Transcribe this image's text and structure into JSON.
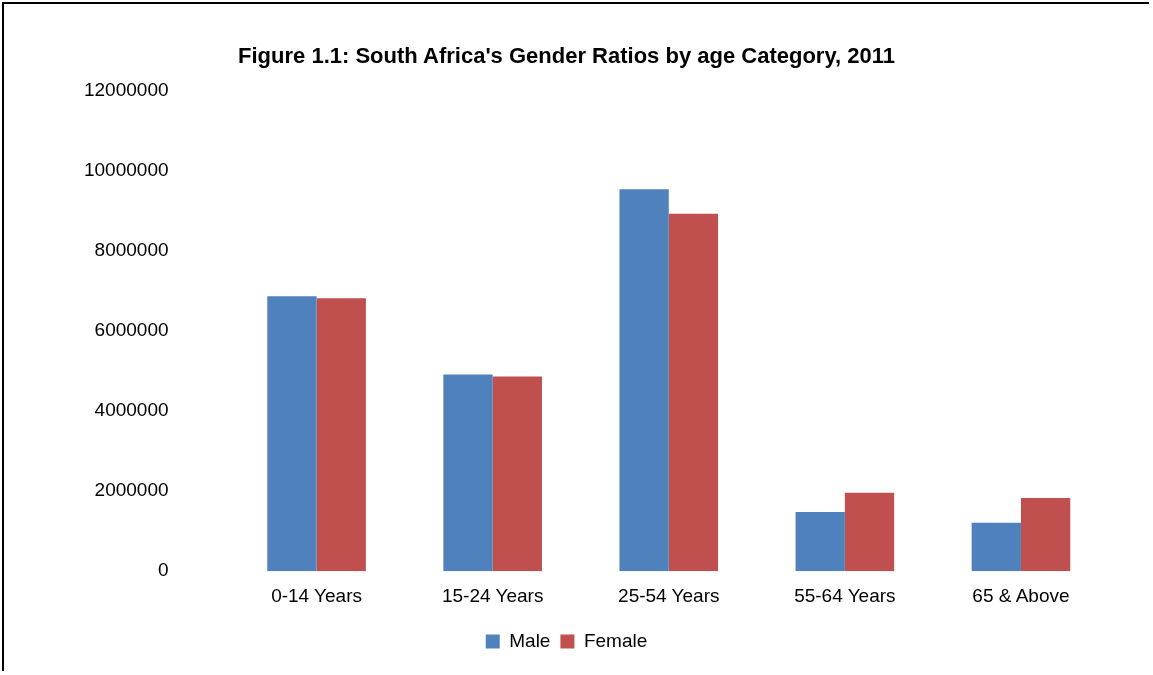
{
  "chart_data": {
    "type": "bar",
    "title": "Figure 1.1: South Africa's Gender Ratios by age Category, 2011",
    "categories": [
      "0-14 Years",
      "15-24 Years",
      "25-54 Years",
      "55-64 Years",
      "65 & Above"
    ],
    "series": [
      {
        "name": "Male",
        "color": "#4f81bd",
        "values": [
          6860000,
          4910000,
          9530000,
          1480000,
          1210000
        ]
      },
      {
        "name": "Female",
        "color": "#c0504d",
        "values": [
          6810000,
          4860000,
          8920000,
          1960000,
          1830000
        ]
      }
    ],
    "ylim": [
      0,
      12000000
    ],
    "yticks": [
      0,
      2000000,
      4000000,
      6000000,
      8000000,
      10000000,
      12000000
    ],
    "grid": false,
    "legend": "bottom"
  }
}
